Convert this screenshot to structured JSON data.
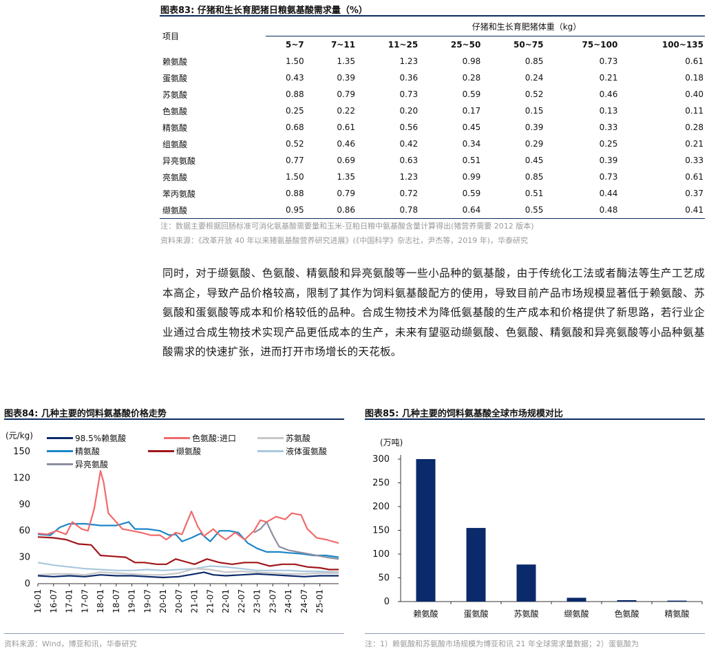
{
  "table83": {
    "title": "图表83:  仔猪和生长育肥猪日粮氨基酸需求量（%）",
    "item_header": "项目",
    "group_header": "仔猪和生长育肥猪体重（kg）",
    "columns": [
      "5~7",
      "7~11",
      "11~25",
      "25~50",
      "50~75",
      "75~100",
      "100~135"
    ],
    "rows": [
      {
        "name": "赖氨酸",
        "values": [
          "1.50",
          "1.35",
          "1.23",
          "0.98",
          "0.85",
          "0.73",
          "0.61"
        ]
      },
      {
        "name": "蛋氨酸",
        "values": [
          "0.43",
          "0.39",
          "0.36",
          "0.28",
          "0.24",
          "0.21",
          "0.18"
        ]
      },
      {
        "name": "苏氨酸",
        "values": [
          "0.88",
          "0.79",
          "0.73",
          "0.59",
          "0.52",
          "0.46",
          "0.40"
        ]
      },
      {
        "name": "色氨酸",
        "values": [
          "0.25",
          "0.22",
          "0.20",
          "0.17",
          "0.15",
          "0.13",
          "0.11"
        ]
      },
      {
        "name": "精氨酸",
        "values": [
          "0.68",
          "0.61",
          "0.56",
          "0.45",
          "0.39",
          "0.33",
          "0.28"
        ]
      },
      {
        "name": "组氨酸",
        "values": [
          "0.52",
          "0.46",
          "0.42",
          "0.34",
          "0.29",
          "0.25",
          "0.21"
        ]
      },
      {
        "name": "异亮氨酸",
        "values": [
          "0.77",
          "0.69",
          "0.63",
          "0.51",
          "0.45",
          "0.39",
          "0.33"
        ]
      },
      {
        "name": "亮氨酸",
        "values": [
          "1.50",
          "1.35",
          "1.23",
          "0.99",
          "0.85",
          "0.73",
          "0.61"
        ]
      },
      {
        "name": "苯丙氨酸",
        "values": [
          "0.88",
          "0.79",
          "0.72",
          "0.59",
          "0.51",
          "0.44",
          "0.37"
        ]
      },
      {
        "name": "缬氨酸",
        "values": [
          "0.95",
          "0.86",
          "0.78",
          "0.64",
          "0.55",
          "0.48",
          "0.41"
        ]
      }
    ],
    "note": "注：数据主要根据回肠标准可消化氨基酸需要量和玉米-豆粕日粮中氨基酸含量计算得出(猪营养需要 2012 版本)",
    "source": "资料来源：《改革开放 40 年以来猪氨基酸营养研究进展》(《中国科学》杂志社，尹杰等，2019 年)，华泰研究"
  },
  "paragraph": "同时，对于缬氨酸、色氨酸、精氨酸和异亮氨酸等一些小品种的氨基酸，由于传统化工法或者酶法等生产工艺成本高企，导致产品价格较高，限制了其作为饲料氨基酸配方的使用，导致目前产品市场规模显著低于赖氨酸、苏氨酸和蛋氨酸等成本和价格较低的品种。合成生物技术为降低氨基酸的生产成本和价格提供了新思路，若行业企业通过合成生物技术实现产品更低成本的生产，未来有望驱动缬氨酸、色氨酸、精氨酸和异亮氨酸等小品种氨基酸需求的快速扩张，进而打开市场增长的天花板。",
  "fig84": {
    "title": "图表84:  几种主要的饲料氨基酸价格走势",
    "source": "资料来源：Wind，博亚和讯，华泰研究"
  },
  "fig85": {
    "title": "图表85:  几种主要的饲料氨基酸全球市场规模对比",
    "note_line1": "注：1）赖氨酸和苏氨酸市场规模为博亚和讯 21 年全球需求量数据；2）蛋氨酸为"
  },
  "chart_data": [
    {
      "type": "line",
      "ylabel": "(元/kg)",
      "ylim": [
        0,
        150
      ],
      "yticks": [
        0,
        30,
        60,
        90,
        120,
        150
      ],
      "x_ticks": [
        "16-01",
        "16-07",
        "17-01",
        "17-07",
        "18-01",
        "18-07",
        "19-01",
        "19-07",
        "20-01",
        "20-07",
        "21-01",
        "21-07",
        "22-01",
        "22-07",
        "23-01",
        "23-07",
        "24-01",
        "24-07",
        "25-01"
      ],
      "x_range": [
        2016.0,
        2025.6
      ],
      "legend": "top",
      "series": [
        {
          "name": "98.5%赖氨酸",
          "color": "#0b2a6b",
          "points": [
            [
              2016.0,
              9
            ],
            [
              2016.5,
              8
            ],
            [
              2017.0,
              9
            ],
            [
              2017.5,
              8
            ],
            [
              2018.0,
              10
            ],
            [
              2018.5,
              9
            ],
            [
              2019.0,
              9
            ],
            [
              2019.5,
              8
            ],
            [
              2020.0,
              7
            ],
            [
              2020.5,
              8
            ],
            [
              2021.0,
              11
            ],
            [
              2021.3,
              13
            ],
            [
              2021.6,
              10
            ],
            [
              2022.0,
              9
            ],
            [
              2022.5,
              10
            ],
            [
              2023.0,
              11
            ],
            [
              2023.5,
              10
            ],
            [
              2024.0,
              9
            ],
            [
              2024.5,
              8
            ],
            [
              2025.0,
              9
            ],
            [
              2025.6,
              9
            ]
          ]
        },
        {
          "name": "色氨酸:进口",
          "color": "#f06a6a",
          "points": [
            [
              2016.0,
              57
            ],
            [
              2016.3,
              56
            ],
            [
              2016.6,
              60
            ],
            [
              2016.9,
              56
            ],
            [
              2017.1,
              70
            ],
            [
              2017.4,
              62
            ],
            [
              2017.6,
              60
            ],
            [
              2017.8,
              85
            ],
            [
              2018.0,
              128
            ],
            [
              2018.1,
              115
            ],
            [
              2018.25,
              80
            ],
            [
              2018.5,
              70
            ],
            [
              2018.7,
              62
            ],
            [
              2019.0,
              60
            ],
            [
              2019.3,
              58
            ],
            [
              2019.6,
              55
            ],
            [
              2019.9,
              55
            ],
            [
              2020.1,
              50
            ],
            [
              2020.4,
              58
            ],
            [
              2020.6,
              56
            ],
            [
              2020.9,
              82
            ],
            [
              2021.1,
              65
            ],
            [
              2021.3,
              54
            ],
            [
              2021.6,
              62
            ],
            [
              2021.8,
              55
            ],
            [
              2022.0,
              50
            ],
            [
              2022.3,
              58
            ],
            [
              2022.6,
              50
            ],
            [
              2022.9,
              60
            ],
            [
              2023.1,
              72
            ],
            [
              2023.3,
              70
            ],
            [
              2023.6,
              76
            ],
            [
              2023.9,
              73
            ],
            [
              2024.1,
              80
            ],
            [
              2024.4,
              78
            ],
            [
              2024.6,
              62
            ],
            [
              2024.9,
              52
            ],
            [
              2025.2,
              50
            ],
            [
              2025.6,
              46
            ]
          ]
        },
        {
          "name": "苏氨酸",
          "color": "#c6c6c6",
          "points": [
            [
              2016.0,
              10
            ],
            [
              2016.5,
              11
            ],
            [
              2017.0,
              11
            ],
            [
              2017.5,
              10
            ],
            [
              2018.0,
              13
            ],
            [
              2018.5,
              12
            ],
            [
              2019.0,
              11
            ],
            [
              2019.5,
              10
            ],
            [
              2020.0,
              10
            ],
            [
              2020.5,
              12
            ],
            [
              2021.0,
              17
            ],
            [
              2021.5,
              16
            ],
            [
              2022.0,
              13
            ],
            [
              2022.5,
              14
            ],
            [
              2023.0,
              13
            ],
            [
              2023.5,
              12
            ],
            [
              2024.0,
              11
            ],
            [
              2024.5,
              11
            ],
            [
              2025.0,
              12
            ],
            [
              2025.6,
              12
            ]
          ]
        },
        {
          "name": "精氨酸",
          "color": "#1a86c9",
          "points": [
            [
              2016.0,
              56
            ],
            [
              2016.4,
              55
            ],
            [
              2016.7,
              64
            ],
            [
              2017.0,
              68
            ],
            [
              2017.5,
              68
            ],
            [
              2018.0,
              66
            ],
            [
              2018.5,
              66
            ],
            [
              2018.9,
              70
            ],
            [
              2019.1,
              62
            ],
            [
              2019.5,
              62
            ],
            [
              2019.9,
              60
            ],
            [
              2020.2,
              55
            ],
            [
              2020.4,
              56
            ],
            [
              2020.6,
              48
            ],
            [
              2020.9,
              52
            ],
            [
              2021.2,
              57
            ],
            [
              2021.5,
              48
            ],
            [
              2021.8,
              60
            ],
            [
              2022.1,
              60
            ],
            [
              2022.4,
              58
            ],
            [
              2022.7,
              46
            ],
            [
              2023.0,
              40
            ],
            [
              2023.3,
              36
            ],
            [
              2023.7,
              36
            ],
            [
              2024.0,
              35
            ],
            [
              2024.4,
              34
            ],
            [
              2024.8,
              32
            ],
            [
              2025.2,
              32
            ],
            [
              2025.6,
              30
            ]
          ]
        },
        {
          "name": "缬氨酸",
          "color": "#a01518",
          "points": [
            [
              2016.0,
              53
            ],
            [
              2016.5,
              52
            ],
            [
              2016.9,
              50
            ],
            [
              2017.3,
              45
            ],
            [
              2017.7,
              44
            ],
            [
              2018.0,
              32
            ],
            [
              2018.4,
              31
            ],
            [
              2018.8,
              30
            ],
            [
              2019.1,
              24
            ],
            [
              2019.4,
              24
            ],
            [
              2019.8,
              22
            ],
            [
              2020.1,
              22
            ],
            [
              2020.4,
              28
            ],
            [
              2020.7,
              25
            ],
            [
              2021.0,
              22
            ],
            [
              2021.4,
              28
            ],
            [
              2021.8,
              24
            ],
            [
              2022.2,
              22
            ],
            [
              2022.6,
              24
            ],
            [
              2023.0,
              24
            ],
            [
              2023.4,
              20
            ],
            [
              2023.8,
              22
            ],
            [
              2024.2,
              22
            ],
            [
              2024.6,
              19
            ],
            [
              2025.0,
              18
            ],
            [
              2025.3,
              16
            ],
            [
              2025.6,
              16
            ]
          ]
        },
        {
          "name": "液体蛋氨酸",
          "color": "#a7c8de",
          "points": [
            [
              2016.0,
              24
            ],
            [
              2016.5,
              21
            ],
            [
              2017.0,
              19
            ],
            [
              2017.5,
              17
            ],
            [
              2018.0,
              16
            ],
            [
              2018.5,
              15
            ],
            [
              2019.0,
              15
            ],
            [
              2019.5,
              16
            ],
            [
              2020.0,
              15
            ],
            [
              2020.5,
              16
            ],
            [
              2021.0,
              17
            ],
            [
              2021.5,
              20
            ],
            [
              2022.0,
              19
            ],
            [
              2022.5,
              17
            ],
            [
              2023.0,
              15
            ],
            [
              2023.5,
              15
            ],
            [
              2024.0,
              15
            ],
            [
              2024.5,
              14
            ],
            [
              2025.0,
              14
            ],
            [
              2025.6,
              13
            ]
          ]
        },
        {
          "name": "异亮氨酸",
          "color": "#8a8fa0",
          "points": [
            [
              2022.9,
              58
            ],
            [
              2023.1,
              62
            ],
            [
              2023.3,
              70
            ],
            [
              2023.5,
              55
            ],
            [
              2023.7,
              42
            ],
            [
              2024.0,
              38
            ],
            [
              2024.3,
              36
            ],
            [
              2024.6,
              34
            ],
            [
              2024.9,
              32
            ],
            [
              2025.2,
              30
            ],
            [
              2025.6,
              28
            ]
          ]
        }
      ]
    },
    {
      "type": "bar",
      "ylabel": "(万吨)",
      "ylim": [
        0,
        300
      ],
      "yticks": [
        0,
        50,
        100,
        150,
        200,
        250,
        300
      ],
      "categories": [
        "赖氨酸",
        "蛋氨酸",
        "苏氨酸",
        "缬氨酸",
        "色氨酸",
        "精氨酸"
      ],
      "values": [
        300,
        155,
        78,
        8,
        3,
        2
      ],
      "color": "#0b2a6b"
    }
  ]
}
